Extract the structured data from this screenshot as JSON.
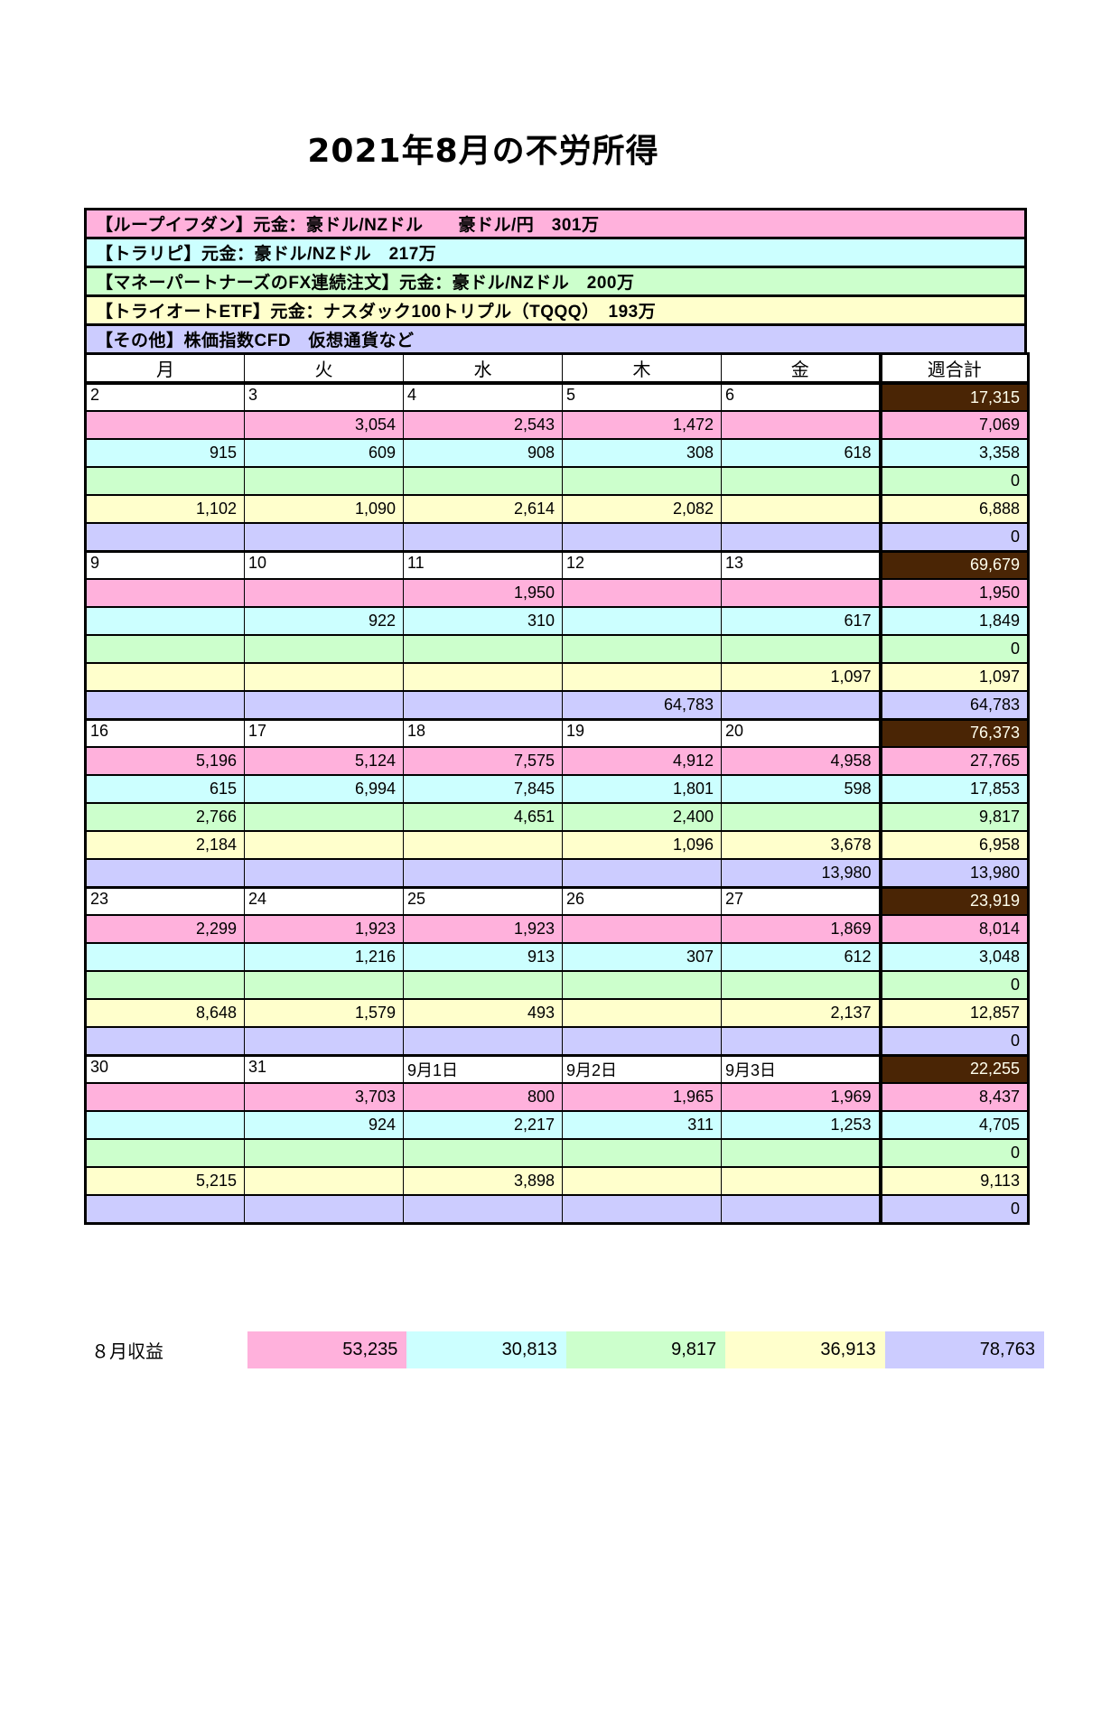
{
  "page": {
    "title": "2021年8月の不労所得"
  },
  "colors": {
    "pink": "#FFB1DC",
    "cyan": "#CCFFFF",
    "green": "#CCFFCC",
    "yellow": "#FFFFCC",
    "purple": "#CCCCFF",
    "brown": "#4A2505",
    "brown_text": "#FFFFEE",
    "border": "#000000"
  },
  "legend": [
    {
      "color": "pink",
      "label": "【ループイフダン】元金：豪ドル/NZドル　　豪ドル/円　301万"
    },
    {
      "color": "cyan",
      "label": "【トラリピ】元金：豪ドル/NZドル　217万"
    },
    {
      "color": "green",
      "label": "【マネーパートナーズのFX連続注文】元金：豪ドル/NZドル　200万"
    },
    {
      "color": "yellow",
      "label": "【トライオートETF】元金：ナスダック100トリプル（TQQQ）　193万"
    },
    {
      "color": "purple",
      "label": "【その他】株価指数CFD　仮想通貨など"
    }
  ],
  "calendar": {
    "headers": [
      "月",
      "火",
      "水",
      "木",
      "金",
      "週合計"
    ],
    "weeks": [
      {
        "dates": [
          "2",
          "3",
          "4",
          "5",
          "6"
        ],
        "week_total": "17,315",
        "rows": [
          {
            "color": "pink",
            "values": [
              "",
              "3,054",
              "2,543",
              "1,472",
              ""
            ],
            "total": "7,069"
          },
          {
            "color": "cyan",
            "values": [
              "915",
              "609",
              "908",
              "308",
              "618"
            ],
            "total": "3,358"
          },
          {
            "color": "green",
            "values": [
              "",
              "",
              "",
              "",
              ""
            ],
            "total": "0"
          },
          {
            "color": "yellow",
            "values": [
              "1,102",
              "1,090",
              "2,614",
              "2,082",
              ""
            ],
            "total": "6,888"
          },
          {
            "color": "purple",
            "values": [
              "",
              "",
              "",
              "",
              ""
            ],
            "total": "0"
          }
        ]
      },
      {
        "dates": [
          "9",
          "10",
          "11",
          "12",
          "13"
        ],
        "week_total": "69,679",
        "rows": [
          {
            "color": "pink",
            "values": [
              "",
              "",
              "1,950",
              "",
              ""
            ],
            "total": "1,950"
          },
          {
            "color": "cyan",
            "values": [
              "",
              "922",
              "310",
              "",
              "617"
            ],
            "total": "1,849"
          },
          {
            "color": "green",
            "values": [
              "",
              "",
              "",
              "",
              ""
            ],
            "total": "0"
          },
          {
            "color": "yellow",
            "values": [
              "",
              "",
              "",
              "",
              "1,097"
            ],
            "total": "1,097"
          },
          {
            "color": "purple",
            "values": [
              "",
              "",
              "",
              "64,783",
              ""
            ],
            "total": "64,783"
          }
        ]
      },
      {
        "dates": [
          "16",
          "17",
          "18",
          "19",
          "20"
        ],
        "week_total": "76,373",
        "rows": [
          {
            "color": "pink",
            "values": [
              "5,196",
              "5,124",
              "7,575",
              "4,912",
              "4,958"
            ],
            "total": "27,765"
          },
          {
            "color": "cyan",
            "values": [
              "615",
              "6,994",
              "7,845",
              "1,801",
              "598"
            ],
            "total": "17,853"
          },
          {
            "color": "green",
            "values": [
              "2,766",
              "",
              "4,651",
              "2,400",
              ""
            ],
            "total": "9,817"
          },
          {
            "color": "yellow",
            "values": [
              "2,184",
              "",
              "",
              "1,096",
              "3,678"
            ],
            "total": "6,958"
          },
          {
            "color": "purple",
            "values": [
              "",
              "",
              "",
              "",
              "13,980"
            ],
            "total": "13,980"
          }
        ]
      },
      {
        "dates": [
          "23",
          "24",
          "25",
          "26",
          "27"
        ],
        "week_total": "23,919",
        "rows": [
          {
            "color": "pink",
            "values": [
              "2,299",
              "1,923",
              "1,923",
              "",
              "1,869"
            ],
            "total": "8,014"
          },
          {
            "color": "cyan",
            "values": [
              "",
              "1,216",
              "913",
              "307",
              "612"
            ],
            "total": "3,048"
          },
          {
            "color": "green",
            "values": [
              "",
              "",
              "",
              "",
              ""
            ],
            "total": "0"
          },
          {
            "color": "yellow",
            "values": [
              "8,648",
              "1,579",
              "493",
              "",
              "2,137"
            ],
            "total": "12,857"
          },
          {
            "color": "purple",
            "values": [
              "",
              "",
              "",
              "",
              ""
            ],
            "total": "0"
          }
        ]
      },
      {
        "dates": [
          "30",
          "31",
          "9月1日",
          "9月2日",
          "9月3日"
        ],
        "week_total": "22,255",
        "rows": [
          {
            "color": "pink",
            "values": [
              "",
              "3,703",
              "800",
              "1,965",
              "1,969"
            ],
            "total": "8,437"
          },
          {
            "color": "cyan",
            "values": [
              "",
              "924",
              "2,217",
              "311",
              "1,253"
            ],
            "total": "4,705"
          },
          {
            "color": "green",
            "values": [
              "",
              "",
              "",
              "",
              ""
            ],
            "total": "0"
          },
          {
            "color": "yellow",
            "values": [
              "5,215",
              "",
              "3,898",
              "",
              ""
            ],
            "total": "9,113"
          },
          {
            "color": "purple",
            "values": [
              "",
              "",
              "",
              "",
              ""
            ],
            "total": "0"
          }
        ]
      }
    ]
  },
  "summary": {
    "label": "８月収益",
    "cells": [
      {
        "color": "pink",
        "value": "53,235"
      },
      {
        "color": "cyan",
        "value": "30,813"
      },
      {
        "color": "green",
        "value": "9,817"
      },
      {
        "color": "yellow",
        "value": "36,913"
      },
      {
        "color": "purple",
        "value": "78,763"
      }
    ]
  }
}
